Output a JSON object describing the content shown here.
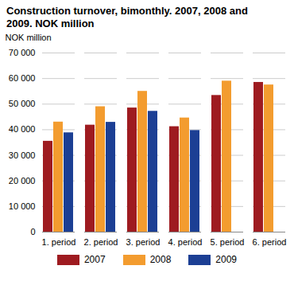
{
  "chart_data": {
    "type": "bar",
    "title": "Construction turnover, bimonthly. 2007, 2008 and 2009. NOK million",
    "y_label": "NOK million",
    "categories": [
      "1. period",
      "2. period",
      "3. period",
      "4. period",
      "5. period",
      "6. period"
    ],
    "series": [
      {
        "name": "2007",
        "color": "#9e1b20",
        "values": [
          35500,
          41800,
          48500,
          41200,
          53400,
          58500
        ]
      },
      {
        "name": "2008",
        "color": "#f39c2f",
        "values": [
          43000,
          49000,
          55000,
          44600,
          59000,
          57500
        ]
      },
      {
        "name": "2009",
        "color": "#1c3f94",
        "values": [
          38800,
          42900,
          47200,
          39700,
          null,
          null
        ]
      }
    ],
    "ylim": [
      0,
      70000
    ],
    "yticks": [
      0,
      {
        "value": 10000,
        "label": "10 000"
      },
      {
        "value": 20000,
        "label": "20 000"
      },
      {
        "value": 30000,
        "label": "30 000"
      },
      {
        "value": 40000,
        "label": "40 000"
      },
      {
        "value": 50000,
        "label": "50 000"
      },
      {
        "value": 60000,
        "label": "60 000"
      },
      {
        "value": 70000,
        "label": "70 000"
      }
    ],
    "grid": true,
    "legend": "bottom"
  }
}
